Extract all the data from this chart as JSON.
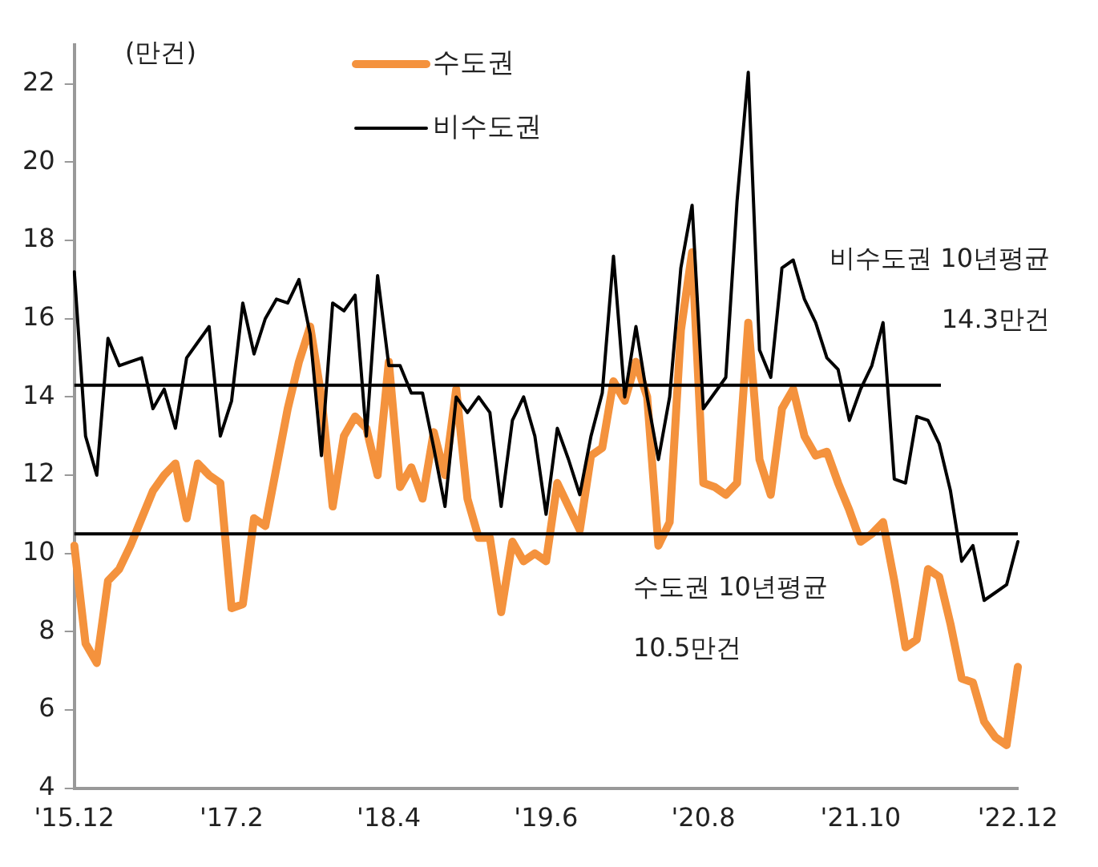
{
  "chart_data": {
    "type": "line",
    "ylabel": "(만건)",
    "categories": [
      "'15.12",
      null,
      null,
      null,
      null,
      null,
      null,
      null,
      null,
      null,
      null,
      null,
      null,
      null,
      "'17.2",
      null,
      null,
      null,
      null,
      null,
      null,
      null,
      null,
      null,
      null,
      null,
      null,
      null,
      "'18.4",
      null,
      null,
      null,
      null,
      null,
      null,
      null,
      null,
      null,
      null,
      null,
      null,
      null,
      "'19.6",
      null,
      null,
      null,
      null,
      null,
      null,
      null,
      null,
      null,
      null,
      null,
      null,
      null,
      "'20.8",
      null,
      null,
      null,
      null,
      null,
      null,
      null,
      null,
      null,
      null,
      null,
      null,
      null,
      "'21.10",
      null,
      null,
      null,
      null,
      null,
      null,
      null,
      null,
      null,
      null,
      null,
      null,
      null,
      "'22.12"
    ],
    "series": [
      {
        "name": "수도권",
        "color": "#f4923d",
        "values": [
          10.2,
          7.7,
          7.2,
          9.3,
          9.6,
          10.2,
          10.9,
          11.6,
          12.0,
          12.3,
          10.9,
          12.3,
          12.0,
          11.8,
          8.6,
          8.7,
          10.9,
          10.7,
          12.2,
          13.7,
          14.9,
          15.8,
          14.0,
          11.2,
          13.0,
          13.5,
          13.2,
          12.0,
          14.9,
          11.7,
          12.2,
          11.4,
          13.1,
          12.0,
          14.2,
          11.4,
          10.4,
          10.4,
          8.5,
          10.3,
          9.8,
          10.0,
          9.8,
          11.8,
          11.2,
          10.6,
          12.5,
          12.7,
          14.4,
          13.9,
          14.9,
          14.0,
          10.2,
          10.8,
          15.7,
          17.7,
          11.8,
          11.7,
          11.5,
          11.8,
          15.9,
          12.4,
          11.5,
          13.7,
          14.2,
          13.0,
          12.5,
          12.6,
          11.8,
          11.1,
          10.3,
          10.5,
          10.8,
          9.3,
          7.6,
          7.8,
          9.6,
          9.4,
          8.2,
          6.8,
          6.7,
          5.7,
          5.3,
          5.1,
          7.1
        ]
      },
      {
        "name": "비수도권",
        "color": "#000000",
        "values": [
          17.2,
          13.0,
          12.0,
          15.5,
          14.8,
          14.9,
          15.0,
          13.7,
          14.2,
          13.2,
          15.0,
          15.4,
          15.8,
          13.0,
          13.9,
          16.4,
          15.1,
          16.0,
          16.5,
          16.4,
          17.0,
          15.6,
          12.5,
          16.4,
          16.2,
          16.6,
          13.0,
          17.1,
          14.8,
          14.8,
          14.1,
          14.1,
          12.7,
          11.2,
          14.0,
          13.6,
          14.0,
          13.6,
          11.2,
          13.4,
          14.0,
          13.0,
          11.0,
          13.2,
          12.4,
          11.5,
          13.0,
          14.1,
          17.6,
          14.0,
          15.8,
          14.0,
          12.4,
          14.0,
          17.3,
          18.9,
          13.7,
          14.1,
          14.5,
          19.0,
          22.3,
          15.2,
          14.5,
          17.3,
          17.5,
          16.5,
          15.9,
          15.0,
          14.7,
          13.4,
          14.2,
          14.8,
          15.9,
          11.9,
          11.8,
          13.5,
          13.4,
          12.8,
          11.6,
          9.8,
          10.2,
          8.8,
          9.0,
          9.2,
          10.3
        ]
      }
    ],
    "ylim": [
      4,
      23
    ],
    "yticks": [
      4,
      6,
      8,
      10,
      12,
      14,
      16,
      18,
      20,
      22
    ],
    "ref_lines": [
      {
        "axis": "y",
        "value": 14.3,
        "label": "비수도권 10년평균\n14.3만건",
        "color": "#000000"
      },
      {
        "axis": "y",
        "value": 10.5,
        "label": "수도권 10년평균\n10.5만건",
        "color": "#000000"
      }
    ],
    "legend": "top",
    "grid": false,
    "marker": "none",
    "line_style": "solid"
  }
}
